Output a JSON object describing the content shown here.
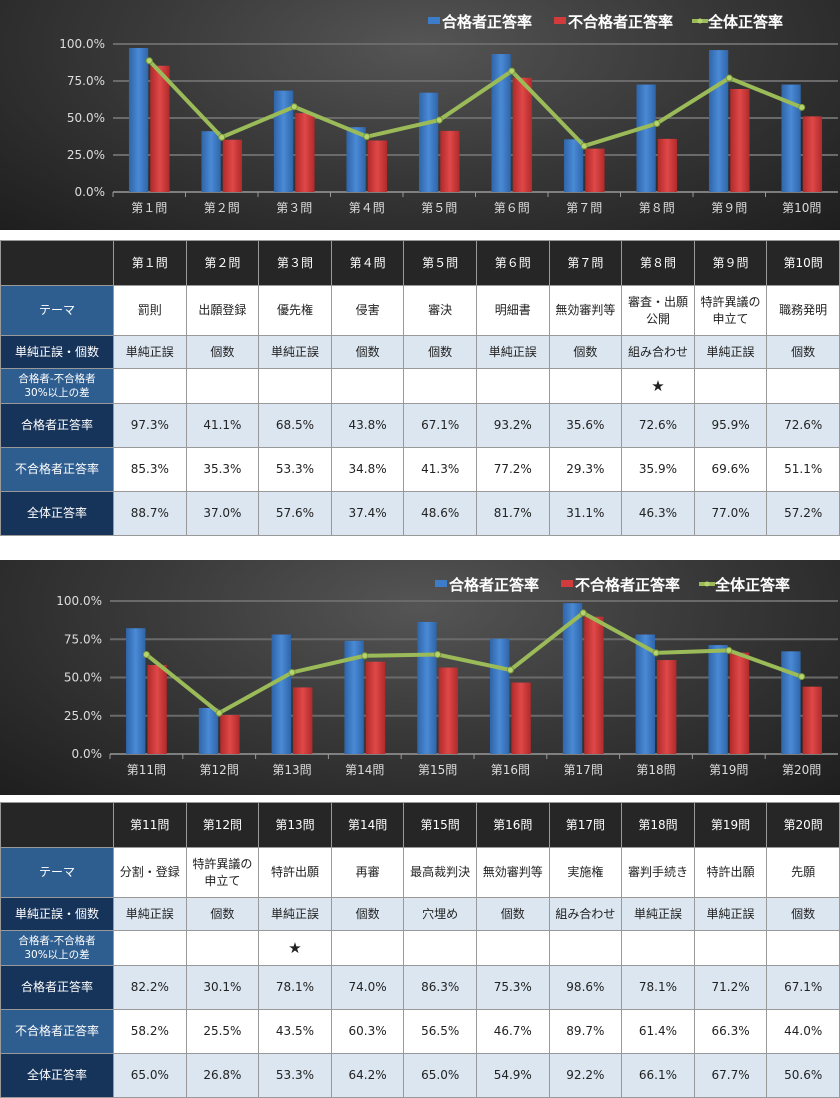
{
  "colors": {
    "passed": "#3d7cc9",
    "failed": "#d23b3b",
    "overall": "#9bbb59",
    "grid": "#777",
    "text": "#ddd"
  },
  "legend": [
    "合格者正答率",
    "不合格者正答率",
    "全体正答率"
  ],
  "row_labels": {
    "theme": "テーマ",
    "type": "単純正誤・個数",
    "diff": "合格者-不合格者\n30%以上の差",
    "passed": "合格者正答率",
    "failed": "不合格者正答率",
    "overall": "全体正答率"
  },
  "chart_data": [
    {
      "type": "bar",
      "title": "",
      "ylim": [
        0,
        100
      ],
      "yticks": [
        "0.0%",
        "25.0%",
        "50.0%",
        "75.0%",
        "100.0%"
      ],
      "legend_position": "top-right",
      "categories": [
        "第１問",
        "第２問",
        "第３問",
        "第４問",
        "第５問",
        "第６問",
        "第７問",
        "第８問",
        "第９問",
        "第10問"
      ],
      "series": [
        {
          "name": "合格者正答率",
          "type": "bar",
          "values": [
            97.3,
            41.1,
            68.5,
            43.8,
            67.1,
            93.2,
            35.6,
            72.6,
            95.9,
            72.6
          ]
        },
        {
          "name": "不合格者正答率",
          "type": "bar",
          "values": [
            85.3,
            35.3,
            53.3,
            34.8,
            41.3,
            77.2,
            29.3,
            35.9,
            69.6,
            51.1
          ]
        },
        {
          "name": "全体正答率",
          "type": "line",
          "values": [
            88.7,
            37.0,
            57.6,
            37.4,
            48.6,
            81.7,
            31.1,
            46.3,
            77.0,
            57.2
          ]
        }
      ]
    },
    {
      "type": "bar",
      "title": "",
      "ylim": [
        0,
        100
      ],
      "yticks": [
        "0.0%",
        "25.0%",
        "50.0%",
        "75.0%",
        "100.0%"
      ],
      "legend_position": "top-right",
      "categories": [
        "第11問",
        "第12問",
        "第13問",
        "第14問",
        "第15問",
        "第16問",
        "第17問",
        "第18問",
        "第19問",
        "第20問"
      ],
      "series": [
        {
          "name": "合格者正答率",
          "type": "bar",
          "values": [
            82.2,
            30.1,
            78.1,
            74.0,
            86.3,
            75.3,
            98.6,
            78.1,
            71.2,
            67.1
          ]
        },
        {
          "name": "不合格者正答率",
          "type": "bar",
          "values": [
            58.2,
            25.5,
            43.5,
            60.3,
            56.5,
            46.7,
            89.7,
            61.4,
            66.3,
            44.0
          ]
        },
        {
          "name": "全体正答率",
          "type": "line",
          "values": [
            65.0,
            26.8,
            53.3,
            64.2,
            65.0,
            54.9,
            92.2,
            66.1,
            67.7,
            50.6
          ]
        }
      ]
    }
  ],
  "tables": [
    {
      "headers": [
        "第１問",
        "第２問",
        "第３問",
        "第４問",
        "第５問",
        "第６問",
        "第７問",
        "第８問",
        "第９問",
        "第10問"
      ],
      "theme": [
        "罰則",
        "出願登録",
        "優先権",
        "侵害",
        "審決",
        "明細書",
        "無効審判等",
        "審査・出願\n公開",
        "特許異議の\n申立て",
        "職務発明"
      ],
      "type": [
        "単純正誤",
        "個数",
        "単純正誤",
        "個数",
        "個数",
        "単純正誤",
        "個数",
        "組み合わせ",
        "単純正誤",
        "個数"
      ],
      "diff": [
        "",
        "",
        "",
        "",
        "",
        "",
        "",
        "★",
        "",
        ""
      ],
      "passed": [
        "97.3%",
        "41.1%",
        "68.5%",
        "43.8%",
        "67.1%",
        "93.2%",
        "35.6%",
        "72.6%",
        "95.9%",
        "72.6%"
      ],
      "failed": [
        "85.3%",
        "35.3%",
        "53.3%",
        "34.8%",
        "41.3%",
        "77.2%",
        "29.3%",
        "35.9%",
        "69.6%",
        "51.1%"
      ],
      "overall": [
        "88.7%",
        "37.0%",
        "57.6%",
        "37.4%",
        "48.6%",
        "81.7%",
        "31.1%",
        "46.3%",
        "77.0%",
        "57.2%"
      ]
    },
    {
      "headers": [
        "第11問",
        "第12問",
        "第13問",
        "第14問",
        "第15問",
        "第16問",
        "第17問",
        "第18問",
        "第19問",
        "第20問"
      ],
      "theme": [
        "分割・登録",
        "特許異議の\n申立て",
        "特許出願",
        "再審",
        "最高裁判決",
        "無効審判等",
        "実施権",
        "審判手続き",
        "特許出願",
        "先願"
      ],
      "type": [
        "単純正誤",
        "個数",
        "単純正誤",
        "個数",
        "穴埋め",
        "個数",
        "組み合わせ",
        "単純正誤",
        "単純正誤",
        "個数"
      ],
      "diff": [
        "",
        "",
        "★",
        "",
        "",
        "",
        "",
        "",
        "",
        ""
      ],
      "passed": [
        "82.2%",
        "30.1%",
        "78.1%",
        "74.0%",
        "86.3%",
        "75.3%",
        "98.6%",
        "78.1%",
        "71.2%",
        "67.1%"
      ],
      "failed": [
        "58.2%",
        "25.5%",
        "43.5%",
        "60.3%",
        "56.5%",
        "46.7%",
        "89.7%",
        "61.4%",
        "66.3%",
        "44.0%"
      ],
      "overall": [
        "65.0%",
        "26.8%",
        "53.3%",
        "64.2%",
        "65.0%",
        "54.9%",
        "92.2%",
        "66.1%",
        "67.7%",
        "50.6%"
      ]
    }
  ]
}
